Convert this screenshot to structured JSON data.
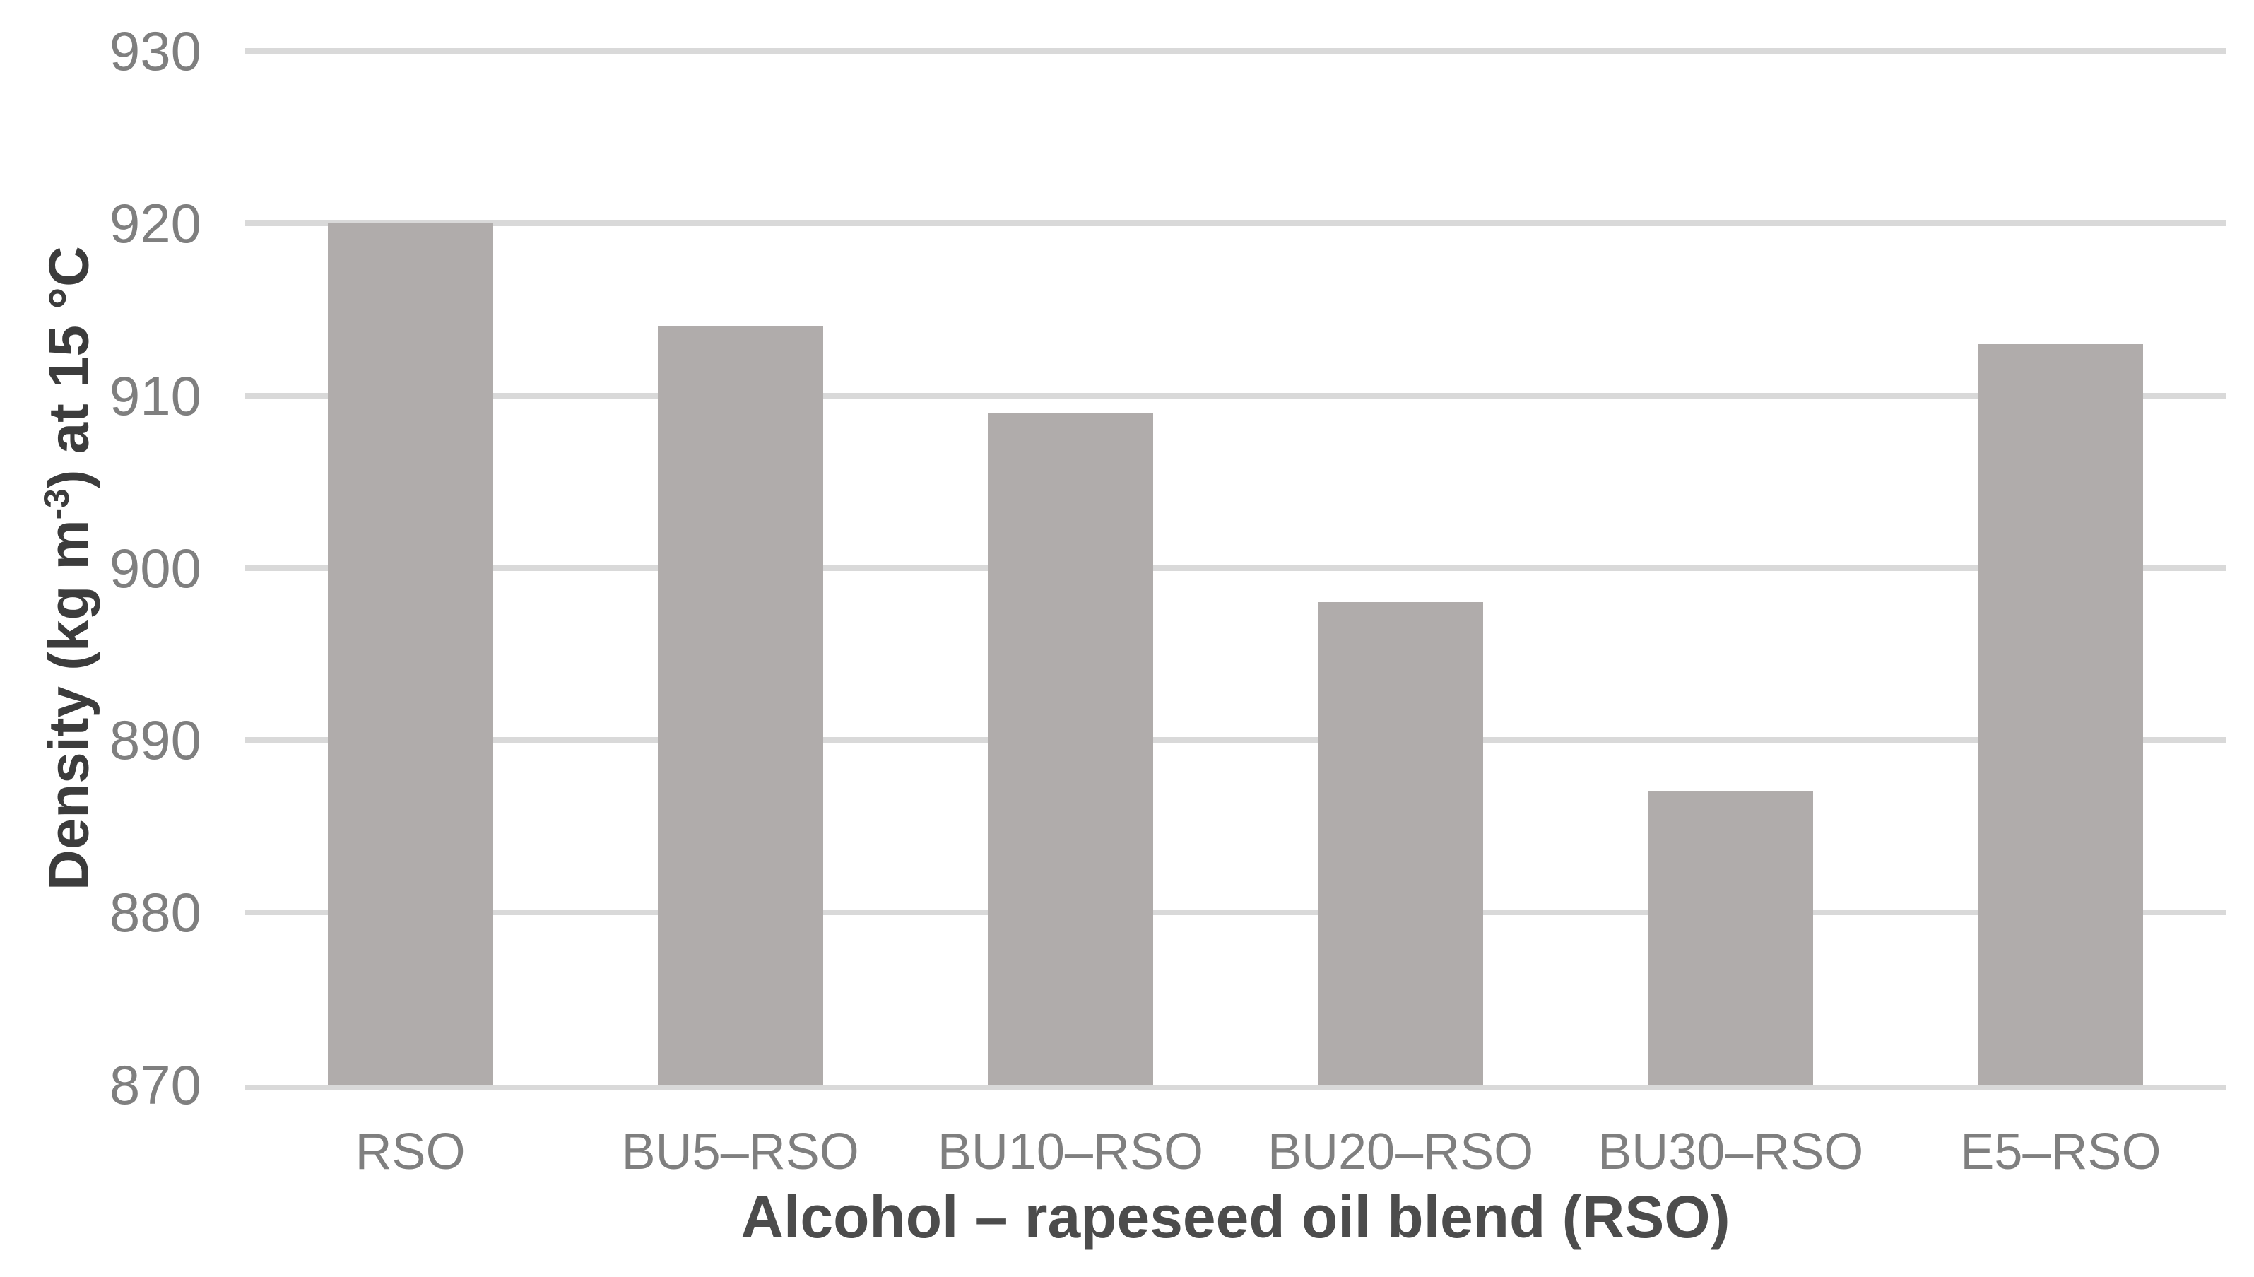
{
  "chart_data": {
    "type": "bar",
    "title": "",
    "categories": [
      "RSO",
      "BU5–RSO",
      "BU10–RSO",
      "BU20–RSO",
      "BU30–RSO",
      "E5–RSO"
    ],
    "values": [
      920,
      914,
      909,
      898,
      887,
      913
    ],
    "xlabel": "Alcohol – rapeseed oil blend (RSO)",
    "ylabel": "Density (kg m⁻³) at 15 °C",
    "ylabel_parts": {
      "prefix": "Density (kg m",
      "superscript": "-3",
      "suffix": ") at 15 °C"
    },
    "ylim": [
      870,
      930
    ],
    "yticks": [
      870,
      880,
      890,
      900,
      910,
      920,
      930
    ],
    "grid": true,
    "legend": false,
    "colors": {
      "bar_fill": "#b0acab",
      "gridline": "#d9d9d9",
      "axis_line": "#d9d9d9",
      "tick_label": "#7f7f7f",
      "y_axis_title": "#3c3c3c",
      "x_axis_title": "#4c4c4c",
      "background": "#ffffff"
    }
  }
}
